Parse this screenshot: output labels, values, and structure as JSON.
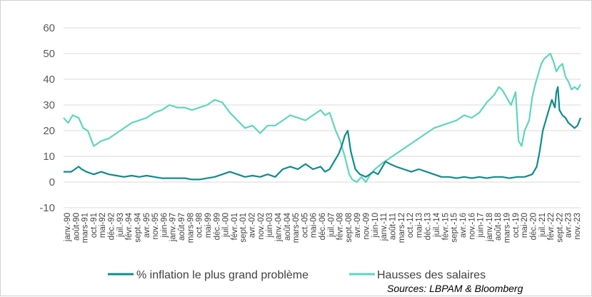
{
  "chart_data": {
    "type": "line",
    "title": "",
    "xlabel": "",
    "ylabel": "",
    "ylim": [
      -10,
      60
    ],
    "y_ticks": [
      -10,
      0,
      10,
      20,
      30,
      40,
      50,
      60
    ],
    "x_range": [
      1990.0,
      2024.2
    ],
    "x_tick_labels": [
      "janv.-90",
      "août-90",
      "mars-91",
      "oct.-91",
      "mai-92",
      "déc.-92",
      "juil.-93",
      "févr.-94",
      "sept.-94",
      "avr.-95",
      "nov.-95",
      "juin-96",
      "janv.-97",
      "août-97",
      "mars-98",
      "oct.-98",
      "mai-99",
      "déc.-99",
      "juil.-00",
      "févr.-01",
      "sept.-01",
      "avr.-02",
      "nov.-02",
      "juin-03",
      "janv.-04",
      "août-04",
      "mars-05",
      "oct.-05",
      "mai-06",
      "déc.-06",
      "juil.-07",
      "févr.-08",
      "sept.-08",
      "avr.-09",
      "nov.-09",
      "juin-10",
      "janv.-11",
      "août-11",
      "mars-12",
      "oct.-12",
      "mai-13",
      "déc.-13",
      "juil.-14",
      "févr.-15",
      "sept.-15",
      "avr.-16",
      "nov.-16",
      "juin-17",
      "janv.-18",
      "août-18",
      "mars-19",
      "oct.-19",
      "mai-20",
      "déc.-20",
      "juil.-21",
      "févr.-22",
      "sept.-22",
      "avr.-23",
      "nov.-23"
    ],
    "grid": true,
    "legend_position": "bottom",
    "colors": {
      "inflation": "#0f8b8d",
      "salaires": "#5dd6bc",
      "grid": "#d9d9d9"
    },
    "series": [
      {
        "name": "% inflation le plus grand problème",
        "color": "#0f8b8d",
        "x": [
          1990.0,
          1990.5,
          1991.0,
          1991.2,
          1991.5,
          1992.0,
          1992.5,
          1993.0,
          1993.5,
          1994.0,
          1994.5,
          1995.0,
          1995.5,
          1996.0,
          1996.5,
          1997.0,
          1997.5,
          1998.0,
          1998.5,
          1999.0,
          1999.5,
          2000.0,
          2000.5,
          2001.0,
          2001.5,
          2002.0,
          2002.5,
          2003.0,
          2003.5,
          2004.0,
          2004.5,
          2005.0,
          2005.5,
          2006.0,
          2006.5,
          2007.0,
          2007.3,
          2007.6,
          2007.8,
          2008.0,
          2008.2,
          2008.4,
          2008.6,
          2008.8,
          2009.0,
          2009.3,
          2009.6,
          2010.0,
          2010.5,
          2010.8,
          2011.0,
          2011.3,
          2011.6,
          2012.0,
          2012.5,
          2013.0,
          2013.5,
          2014.0,
          2014.5,
          2015.0,
          2015.5,
          2016.0,
          2016.5,
          2017.0,
          2017.5,
          2018.0,
          2018.5,
          2019.0,
          2019.5,
          2020.0,
          2020.5,
          2021.0,
          2021.3,
          2021.5,
          2021.7,
          2021.9,
          2022.1,
          2022.3,
          2022.5,
          2022.6,
          2022.7,
          2022.8,
          2023.0,
          2023.2,
          2023.4,
          2023.6,
          2023.8,
          2024.0,
          2024.2
        ],
        "values": [
          4,
          4,
          6,
          5,
          4,
          3,
          4,
          3,
          2.5,
          2,
          2.5,
          2,
          2.5,
          2,
          1.5,
          1.5,
          1.5,
          1.5,
          1,
          1,
          1.5,
          2,
          3,
          4,
          3,
          2,
          2.5,
          2,
          3,
          2,
          5,
          6,
          5,
          7,
          5,
          6,
          4,
          5,
          7,
          9,
          11,
          14,
          18,
          20,
          12,
          5,
          3,
          2,
          4,
          3,
          5,
          8,
          7,
          6,
          5,
          4,
          5,
          4,
          3,
          2,
          2,
          1.5,
          2,
          1.5,
          2,
          1.5,
          2,
          2,
          1.5,
          2,
          2,
          3,
          6,
          12,
          20,
          24,
          28,
          32,
          29,
          35,
          37,
          28,
          26,
          25,
          23,
          22,
          21,
          22,
          25
        ]
      },
      {
        "name": "Hausses des salaires",
        "color": "#5dd6bc",
        "x": [
          1990.0,
          1990.3,
          1990.6,
          1991.0,
          1991.3,
          1991.6,
          1992.0,
          1992.5,
          1993.0,
          1993.5,
          1994.0,
          1994.5,
          1995.0,
          1995.5,
          1996.0,
          1996.5,
          1997.0,
          1997.5,
          1998.0,
          1998.5,
          1999.0,
          1999.5,
          2000.0,
          2000.5,
          2001.0,
          2001.5,
          2002.0,
          2002.5,
          2003.0,
          2003.5,
          2004.0,
          2004.5,
          2005.0,
          2005.5,
          2006.0,
          2006.5,
          2007.0,
          2007.3,
          2007.6,
          2008.0,
          2008.3,
          2008.6,
          2008.9,
          2009.1,
          2009.4,
          2009.7,
          2010.0,
          2010.3,
          2010.6,
          2011.0,
          2011.5,
          2012.0,
          2012.5,
          2013.0,
          2013.5,
          2014.0,
          2014.5,
          2015.0,
          2015.5,
          2016.0,
          2016.5,
          2017.0,
          2017.5,
          2018.0,
          2018.5,
          2018.8,
          2019.0,
          2019.3,
          2019.6,
          2019.9,
          2020.1,
          2020.3,
          2020.5,
          2020.8,
          2021.0,
          2021.2,
          2021.4,
          2021.6,
          2021.8,
          2022.0,
          2022.2,
          2022.4,
          2022.6,
          2022.8,
          2023.0,
          2023.2,
          2023.4,
          2023.6,
          2023.8,
          2024.0,
          2024.2
        ],
        "values": [
          25,
          23,
          26,
          25,
          21,
          20,
          14,
          16,
          17,
          19,
          21,
          23,
          24,
          25,
          27,
          28,
          30,
          29,
          29,
          28,
          29,
          30,
          32,
          31,
          27,
          24,
          21,
          22,
          19,
          22,
          22,
          24,
          26,
          25,
          24,
          26,
          28,
          26,
          27,
          20,
          16,
          10,
          3,
          1,
          0,
          2,
          0,
          3,
          5,
          7,
          9,
          11,
          13,
          15,
          17,
          19,
          21,
          22,
          23,
          24,
          26,
          25,
          27,
          31,
          34,
          37,
          36,
          33,
          30,
          35,
          16,
          14,
          20,
          24,
          33,
          38,
          42,
          46,
          48,
          49,
          50,
          47,
          43,
          45,
          46,
          41,
          39,
          36,
          37,
          36,
          38
        ]
      }
    ]
  },
  "legend": {
    "inflation_label": "% inflation le plus grand problème",
    "salaires_label": "Hausses des salaires"
  },
  "source": "Sources: LBPAM & Bloomberg"
}
